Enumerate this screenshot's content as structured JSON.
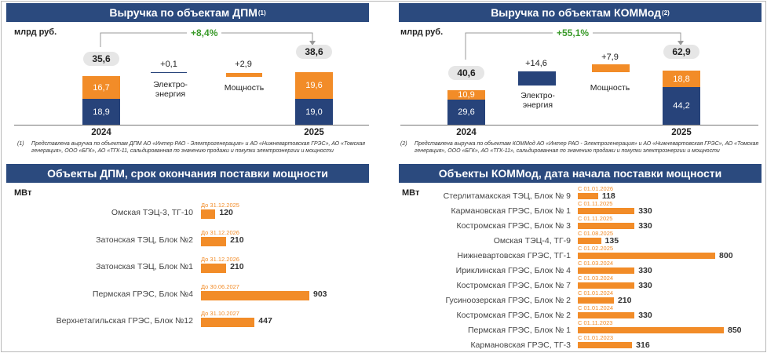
{
  "chart_data": [
    {
      "type": "bar",
      "title": "Выручка по объектам ДПМ",
      "title_note": "(1)",
      "unit": "млрд руб.",
      "growth": "+8,4%",
      "categories": [
        "2024",
        "2025"
      ],
      "start": {
        "total": "35,6",
        "series": [
          {
            "name": "",
            "values": [
              18.9
            ]
          },
          {
            "name": "",
            "values": [
              16.7
            ]
          }
        ],
        "labels": [
          "18,9",
          "16,7"
        ],
        "year": "2024"
      },
      "end": {
        "total": "38,6",
        "labels": [
          "19,0",
          "19,6"
        ],
        "year": "2025"
      },
      "series": [
        {
          "name": "",
          "values": [
            18.9,
            19.0
          ]
        },
        {
          "name": "",
          "values": [
            16.7,
            19.6
          ]
        }
      ],
      "deltas": [
        {
          "value": "+0,1",
          "label": "Электро-\nэнергия",
          "amount": 0.1
        },
        {
          "value": "+2,9",
          "label": "Мощность",
          "amount": 2.9
        }
      ],
      "footnote_marker": "(1)",
      "footnote": "Представлена выручка по объектам ДПМ АО «Интер РАО - Электрогенерация» и АО «Нижневартовская ГРЭС», АО «Томская генерация», ООО «БГК», АО «ТГК-11, сальдированная по значению продажи и покупки электроэнергии и мощности"
    },
    {
      "type": "bar",
      "title": "Выручка по объектам КОММод",
      "title_note": "(2)",
      "unit": "млрд руб.",
      "growth": "+55,1%",
      "categories": [
        "2024",
        "2025"
      ],
      "start": {
        "total": "40,6",
        "labels": [
          "29,6",
          "10,9"
        ],
        "year": "2024"
      },
      "end": {
        "total": "62,9",
        "labels": [
          "44,2",
          "18,8"
        ],
        "year": "2025"
      },
      "series": [
        {
          "name": "",
          "values": [
            29.6,
            44.2
          ]
        },
        {
          "name": "",
          "values": [
            10.9,
            18.8
          ]
        }
      ],
      "deltas": [
        {
          "value": "+14,6",
          "label": "Электро-\nэнергия",
          "amount": 14.6
        },
        {
          "value": "+7,9",
          "label": "Мощность",
          "amount": 7.9
        }
      ],
      "footnote_marker": "(2)",
      "footnote": "Представлена выручка по объектам КОММод АО «Интер РАО - Электрогенерация» и АО «Нижневартовская ГРЭС», АО «Томская генерация», ООО «БГК», АО «ТГК-11», сальдированная по значению продажи и покупки электроэнергии и мощности"
    },
    {
      "type": "bar",
      "orientation": "horizontal",
      "title": "Объекты ДПМ, срок окончания поставки мощности",
      "unit": "МВт",
      "xlim": [
        0,
        903
      ],
      "items": [
        {
          "name": "Омская  ТЭЦ-3, ТГ-10",
          "date": "До 31.12.2025",
          "value": 120,
          "value_label": "120"
        },
        {
          "name": "Затонская ТЭЦ, Блок №2",
          "date": "До 31.12.2026",
          "value": 210,
          "value_label": "210"
        },
        {
          "name": "Затонская ТЭЦ, Блок №1",
          "date": "До 31.12.2026",
          "value": 210,
          "value_label": "210"
        },
        {
          "name": "Пермская ГРЭС, Блок №4",
          "date": "До 30.06.2027",
          "value": 903,
          "value_label": "903"
        },
        {
          "name": "Верхнетагильская ГРЭС, Блок №12",
          "date": "До 31.10.2027",
          "value": 447,
          "value_label": "447"
        }
      ]
    },
    {
      "type": "bar",
      "orientation": "horizontal",
      "title": "Объекты КОММод, дата начала поставки мощности",
      "unit": "МВт",
      "xlim": [
        0,
        850
      ],
      "items": [
        {
          "name": "Стерлитамакская ТЭЦ, Блок № 9",
          "date": "С 01.01.2026",
          "value": 118,
          "value_label": "118"
        },
        {
          "name": "Кармановская ГРЭС, Блок № 1",
          "date": "С 01.11.2025",
          "value": 330,
          "value_label": "330"
        },
        {
          "name": "Костромская ГРЭС, Блок № 3",
          "date": "С 01.11.2025",
          "value": 330,
          "value_label": "330"
        },
        {
          "name": "Омская ТЭЦ-4, ТГ-9",
          "date": "С 01.08.2025",
          "value": 135,
          "value_label": "135"
        },
        {
          "name": "Нижневартовская ГРЭС, ТГ-1",
          "date": "С 01.02.2025",
          "value": 800,
          "value_label": "800"
        },
        {
          "name": "Ириклинская ГРЭС, Блок № 4",
          "date": "С 01.03.2024",
          "value": 330,
          "value_label": "330"
        },
        {
          "name": "Костромская ГРЭС, Блок № 7",
          "date": "С 01.03.2024",
          "value": 330,
          "value_label": "330"
        },
        {
          "name": "Гусиноозерская ГРЭС, Блок № 2",
          "date": "С 01.01.2024",
          "value": 210,
          "value_label": "210"
        },
        {
          "name": "Костромская ГРЭС, Блок № 2",
          "date": "С 01.01.2024",
          "value": 330,
          "value_label": "330"
        },
        {
          "name": "Пермская ГРЭС, Блок № 1",
          "date": "С 01.11.2023",
          "value": 850,
          "value_label": "850"
        },
        {
          "name": "Кармановская ГРЭС, ТГ-3",
          "date": "С 01.01.2023",
          "value": 316,
          "value_label": "316"
        }
      ]
    }
  ],
  "colors": {
    "navy": "#27437a",
    "orange": "#f28c28",
    "banner": "#2b4a7e",
    "growth": "#3a9a2a"
  }
}
